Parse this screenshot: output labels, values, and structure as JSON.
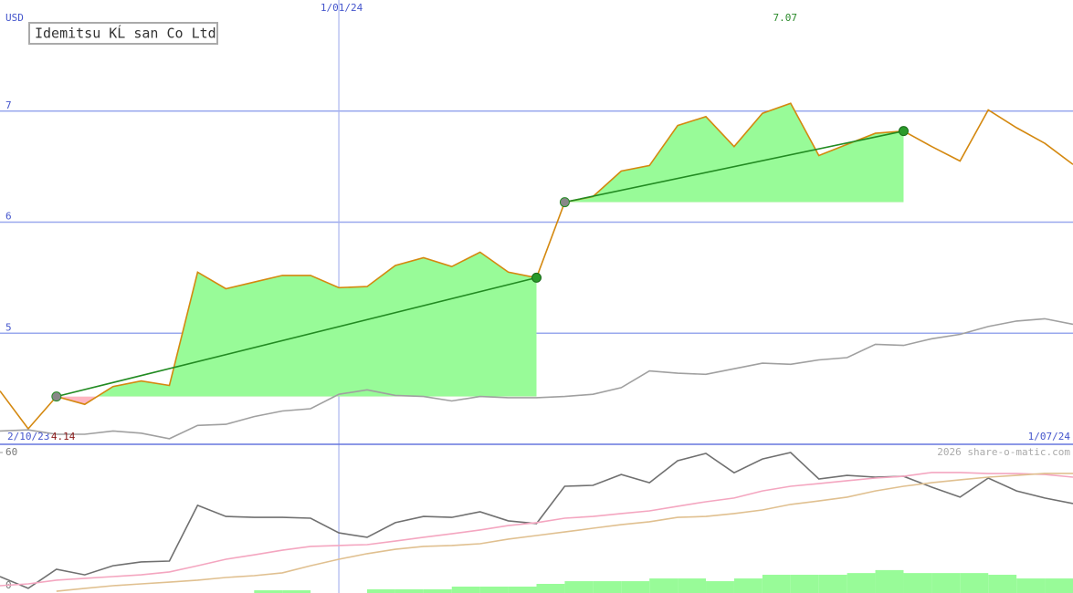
{
  "chart_data": [
    {
      "type": "line",
      "title": "Idemitsu KĹ san Co Ltd",
      "y_label": "USD",
      "categories": [
        "2/10/23",
        null,
        null,
        null,
        null,
        null,
        null,
        null,
        null,
        null,
        null,
        null,
        "1/01/24",
        null,
        null,
        null,
        null,
        null,
        null,
        null,
        null,
        null,
        null,
        null,
        null,
        null,
        null,
        null,
        null,
        null,
        null,
        null,
        null,
        null,
        null,
        null,
        null,
        null,
        "1/07/24"
      ],
      "series": [
        {
          "color": "#d4880f",
          "values": [
            4.48,
            4.14,
            4.43,
            4.36,
            4.52,
            4.57,
            4.53,
            5.55,
            5.4,
            5.46,
            5.52,
            5.52,
            5.41,
            5.42,
            5.61,
            5.68,
            5.6,
            5.73,
            5.55,
            5.5,
            6.18,
            6.23,
            6.46,
            6.51,
            6.87,
            6.95,
            6.68,
            6.98,
            7.07,
            6.6,
            6.7,
            6.8,
            6.82,
            6.68,
            6.55,
            7.01,
            6.85,
            6.71,
            6.52
          ]
        },
        {
          "color": "#a0a0a0",
          "values": [
            4.12,
            4.13,
            4.09,
            4.09,
            4.12,
            4.1,
            4.05,
            4.17,
            4.18,
            4.25,
            4.3,
            4.32,
            4.45,
            4.49,
            4.44,
            4.43,
            4.39,
            4.43,
            4.42,
            4.42,
            4.43,
            4.45,
            4.51,
            4.66,
            4.64,
            4.63,
            4.68,
            4.73,
            4.72,
            4.76,
            4.78,
            4.9,
            4.89,
            4.95,
            4.99,
            5.06,
            5.11,
            5.13,
            5.08
          ]
        }
      ],
      "trend_segments": [
        [
          2,
          19
        ],
        [
          20,
          32
        ]
      ],
      "trend_color": "#228b22",
      "gain_color": "#98fb98",
      "loss_color": "#ffb6c1",
      "ylim": [
        4,
        8
      ],
      "yticks": [
        5,
        6,
        7
      ],
      "grid": true
    },
    {
      "type": "line",
      "credit": "2026 share-o-matic.com",
      "series": [
        {
          "color": "#707070",
          "values": [
            4.1,
            -1.2,
            7.4,
            4.9,
            9.0,
            10.7,
            11.1,
            36.2,
            31.2,
            30.8,
            30.8,
            30.4,
            23.8,
            21.8,
            28.4,
            31.2,
            30.8,
            33.3,
            29.2,
            28.0,
            44.8,
            45.2,
            50.1,
            46.4,
            56.3,
            59.6,
            50.9,
            57.1,
            60.0,
            48.1,
            49.7,
            48.9,
            49.3,
            44.4,
            39.9,
            48.5,
            42.7,
            39.5,
            37.0
          ]
        },
        {
          "color": "#f4a6c0",
          "values": [
            0,
            0.8,
            2.5,
            3.3,
            4.1,
            4.9,
            6.2,
            9.0,
            11.9,
            13.9,
            16.0,
            17.7,
            18.1,
            18.5,
            20.1,
            21.8,
            23.4,
            25.1,
            27.1,
            28.4,
            30.4,
            31.2,
            32.5,
            33.7,
            35.8,
            37.8,
            39.5,
            42.7,
            44.8,
            46.0,
            47.3,
            48.5,
            49.3,
            51.0,
            51.0,
            50.5,
            50.5,
            50.1,
            48.9
          ]
        },
        {
          "color": "#e0c090",
          "values": [
            null,
            null,
            -2.5,
            -1.2,
            0,
            0.8,
            1.6,
            2.5,
            3.7,
            4.5,
            5.8,
            9.0,
            11.9,
            14.4,
            16.4,
            17.7,
            18.1,
            18.9,
            21.0,
            22.6,
            24.2,
            25.9,
            27.5,
            28.8,
            30.8,
            31.2,
            32.5,
            34.1,
            36.6,
            38.2,
            39.9,
            42.7,
            44.8,
            46.4,
            47.7,
            48.9,
            49.7,
            50.6,
            50.6
          ]
        },
        {
          "type": "bar",
          "axis": "y2",
          "color": "#98fb98",
          "values": [
            null,
            null,
            null,
            null,
            null,
            null,
            null,
            null,
            null,
            1.1,
            1.1,
            null,
            null,
            1.5,
            1.5,
            1.5,
            2.6,
            2.6,
            2.6,
            3.7,
            4.8,
            4.8,
            4.8,
            5.9,
            5.9,
            4.8,
            5.9,
            7.4,
            7.4,
            7.4,
            8.1,
            9.3,
            8.1,
            8.1,
            8.1,
            7.4,
            5.9,
            5.9,
            null
          ]
        }
      ],
      "ylim": [
        -3.3,
        63.3
      ],
      "yticks": [
        0,
        60
      ],
      "y2lim": [
        0,
        60
      ]
    }
  ]
}
